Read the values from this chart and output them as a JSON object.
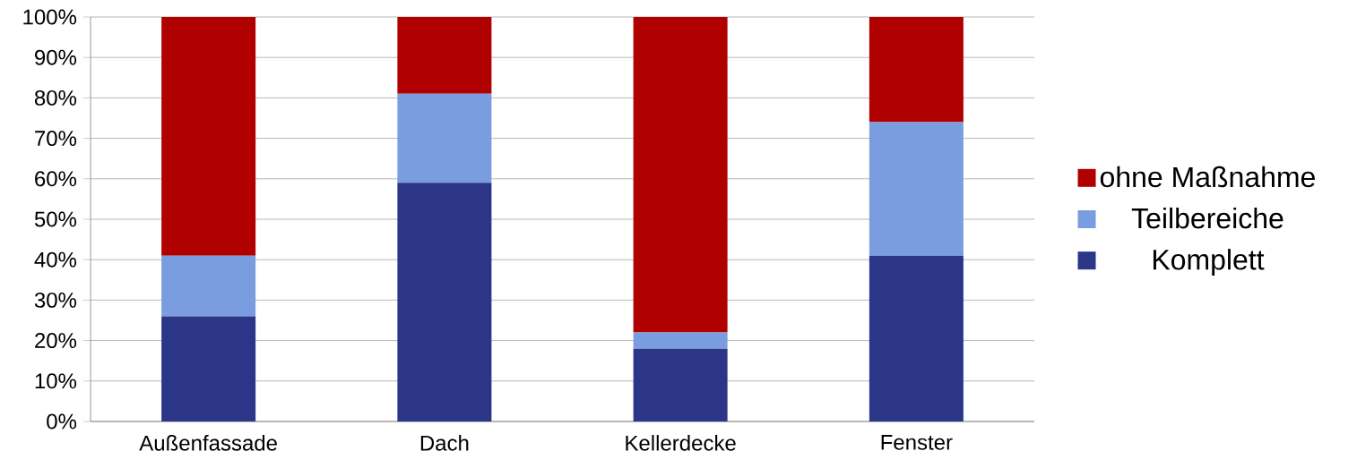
{
  "chart_data": {
    "type": "bar",
    "stacked": true,
    "categories": [
      "Außenfassade",
      "Dach",
      "Kellerdecke",
      "Fenster"
    ],
    "series": [
      {
        "name": "Komplett",
        "color": "#2b3689",
        "values": [
          26,
          59,
          18,
          41
        ]
      },
      {
        "name": "Teilbereiche",
        "color": "#7a9de0",
        "values": [
          15,
          22,
          4,
          33
        ]
      },
      {
        "name": "ohne Maßnahme",
        "color": "#b00000",
        "values": [
          59,
          19,
          78,
          26
        ]
      }
    ],
    "ylim": [
      0,
      100
    ],
    "yticks": [
      {
        "value": 0,
        "label": "0%"
      },
      {
        "value": 10,
        "label": "10%"
      },
      {
        "value": 20,
        "label": "20%"
      },
      {
        "value": 30,
        "label": "30%"
      },
      {
        "value": 40,
        "label": "40%"
      },
      {
        "value": 50,
        "label": "50%"
      },
      {
        "value": 60,
        "label": "60%"
      },
      {
        "value": 70,
        "label": "70%"
      },
      {
        "value": 80,
        "label": "80%"
      },
      {
        "value": 90,
        "label": "90%"
      },
      {
        "value": 100,
        "label": "100%"
      }
    ],
    "grid": "y",
    "legend": "right"
  }
}
